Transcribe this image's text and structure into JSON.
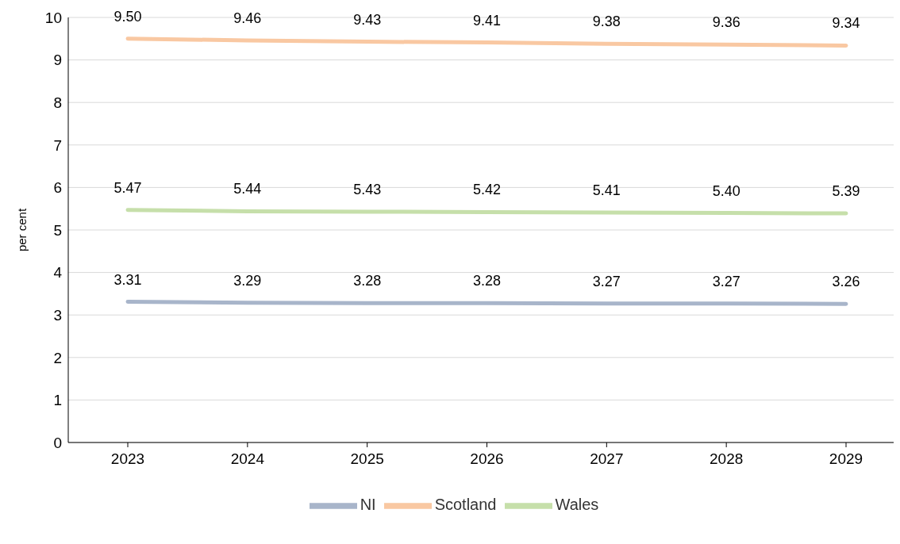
{
  "chart_data": {
    "type": "line",
    "ylabel": "per cent",
    "categories": [
      "2023",
      "2024",
      "2025",
      "2026",
      "2027",
      "2028",
      "2029"
    ],
    "series": [
      {
        "name": "NI",
        "color": "#a8b5ca",
        "values": [
          3.31,
          3.29,
          3.28,
          3.28,
          3.27,
          3.27,
          3.26
        ],
        "value_labels": [
          "3.31",
          "3.29",
          "3.28",
          "3.28",
          "3.27",
          "3.27",
          "3.26"
        ]
      },
      {
        "name": "Scotland",
        "color": "#f9c8a2",
        "values": [
          9.5,
          9.46,
          9.43,
          9.41,
          9.38,
          9.36,
          9.34
        ],
        "value_labels": [
          "9.50",
          "9.46",
          "9.43",
          "9.41",
          "9.38",
          "9.36",
          "9.34"
        ]
      },
      {
        "name": "Wales",
        "color": "#c6dfaa",
        "values": [
          5.47,
          5.44,
          5.43,
          5.42,
          5.41,
          5.4,
          5.39
        ],
        "value_labels": [
          "5.47",
          "5.44",
          "5.43",
          "5.42",
          "5.41",
          "5.40",
          "5.39"
        ]
      }
    ],
    "ylim": [
      0,
      10
    ],
    "yticks": [
      0,
      1,
      2,
      3,
      4,
      5,
      6,
      7,
      8,
      9,
      10
    ],
    "grid": "y",
    "legend": "bottom",
    "marker": "none",
    "line_style": "solid"
  }
}
